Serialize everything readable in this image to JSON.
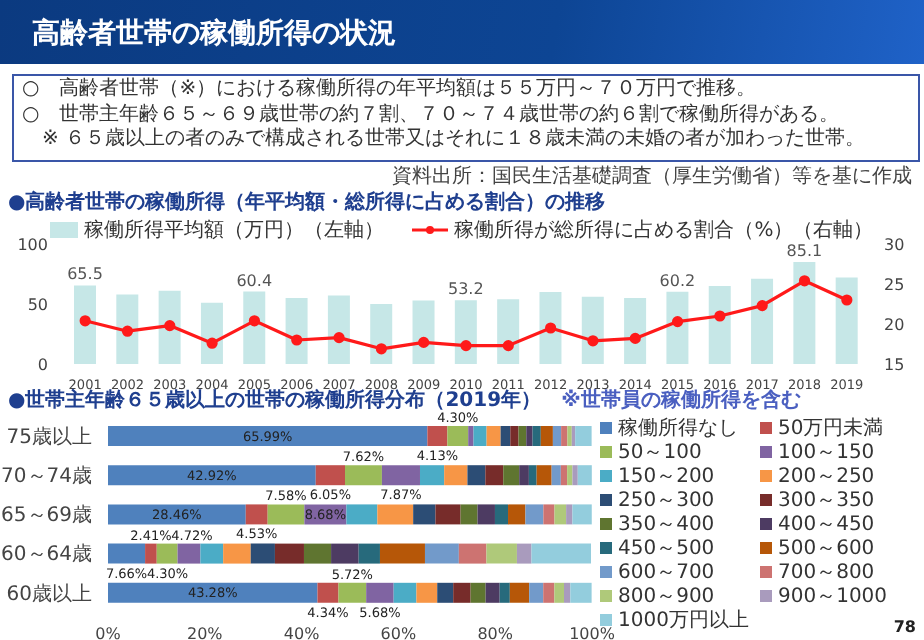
{
  "chart_data": [
    {
      "type": "bar",
      "title": "●高齢者世帯の稼働所得（年平均額・総所得に占める割合）の推移",
      "annotations": [
        "高齢者世帯の稼働所得の状況",
        "○　高齢者世帯（※）における稼働所得の年平均額は５５万円～７０万円で推移。",
        "○　世帯主年齢６５～６９歳世帯の約７割、７０～７４歳世帯の約６割で稼働所得がある。",
        "※ ６５歳以上の者のみで構成される世帯又はそれに１８歳未満の未婚の者が加わった世帯。",
        "資料出所：国民生活基礎調査（厚生労働省）等を基に作成"
      ],
      "categories": [
        "2001",
        "2002",
        "2003",
        "2004",
        "2005",
        "2006",
        "2007",
        "2008",
        "2009",
        "2010",
        "2011",
        "2012",
        "2013",
        "2014",
        "2015",
        "2016",
        "2017",
        "2018",
        "2019"
      ],
      "series": [
        {
          "name": "稼働所得平均額（万円）（左軸）",
          "type": "bar",
          "color": "#c6e7e7",
          "values": [
            65.5,
            58,
            61,
            51,
            60.4,
            55,
            57,
            50,
            53,
            53.2,
            54,
            60,
            56,
            55,
            60.2,
            65,
            71,
            85.1,
            72
          ],
          "value_labels": [
            "65.5",
            null,
            null,
            null,
            "60.4",
            null,
            null,
            null,
            null,
            "53.2",
            null,
            null,
            null,
            null,
            "60.2",
            null,
            null,
            "85.1",
            null
          ]
        },
        {
          "name": "稼働所得が総所得に占める割合（%）（右軸）",
          "type": "line",
          "axis": "y2",
          "color": "#ff1a1a",
          "values": [
            20.4,
            19.1,
            19.8,
            17.6,
            20.4,
            18.0,
            18.3,
            16.9,
            17.7,
            17.3,
            17.3,
            19.5,
            17.9,
            18.2,
            20.3,
            21.0,
            22.3,
            25.4,
            23.0
          ]
        }
      ],
      "ylim": [
        0,
        100
      ],
      "yticks": [
        0,
        50,
        100
      ],
      "y2lim": [
        15,
        30
      ],
      "y2ticks": [
        15,
        20,
        25,
        30
      ],
      "legend": "top",
      "marker": "circle"
    },
    {
      "type": "bar",
      "orientation": "horizontal",
      "stacked": true,
      "title": "●世帯主年齢６５歳以上の世帯の稼働所得分布（2019年）",
      "annotations": [
        "※世帯員の稼働所得を含む",
        "78"
      ],
      "categories": [
        "75歳以上",
        "70～74歳",
        "65～69歳",
        "60～64歳",
        "60歳以上"
      ],
      "series": [
        {
          "name": "稼働所得なし",
          "color": "#4f81bd",
          "values": [
            65.99,
            42.92,
            28.46,
            7.66,
            43.28
          ],
          "value_labels": [
            "65.99%",
            "42.92%",
            "28.46%",
            "7.66%",
            "43.28%"
          ]
        },
        {
          "name": "50万円未満",
          "color": "#c0504d",
          "values": [
            4.13,
            6.05,
            4.53,
            2.41,
            4.34
          ],
          "value_labels": [
            "4.13%",
            "6.05%",
            "4.53%",
            "2.41%",
            "4.34%"
          ]
        },
        {
          "name": "50～100",
          "color": "#9bbb59",
          "values": [
            4.3,
            7.62,
            7.58,
            4.3,
            5.72
          ],
          "value_labels": [
            "4.30%",
            "7.62%",
            "7.58%",
            "4.30%",
            "5.72%"
          ]
        },
        {
          "name": "100～150",
          "color": "#8064a2",
          "values": [
            1.1,
            7.87,
            8.68,
            4.72,
            5.68
          ],
          "value_labels": [
            null,
            "7.87%",
            "8.68%",
            "4.72%",
            "5.68%"
          ]
        },
        {
          "name": "150～200",
          "color": "#4bacc6",
          "values": [
            2.7,
            5.0,
            6.4,
            4.7,
            4.7
          ]
        },
        {
          "name": "200～250",
          "color": "#f79646",
          "values": [
            2.9,
            4.8,
            7.4,
            5.7,
            4.3
          ]
        },
        {
          "name": "250～300",
          "color": "#2c4d75",
          "values": [
            2.0,
            3.7,
            4.6,
            5.0,
            3.3
          ]
        },
        {
          "name": "300～350",
          "color": "#772c2a",
          "values": [
            1.7,
            3.7,
            5.2,
            6.0,
            3.6
          ]
        },
        {
          "name": "350～400",
          "color": "#5f7530",
          "values": [
            1.6,
            3.3,
            3.5,
            5.6,
            3.1
          ]
        },
        {
          "name": "400～450",
          "color": "#4d3b62",
          "values": [
            1.3,
            2.0,
            3.6,
            5.7,
            2.9
          ]
        },
        {
          "name": "450～500",
          "color": "#276a7c",
          "values": [
            1.7,
            1.6,
            2.7,
            4.4,
            2.1
          ]
        },
        {
          "name": "500～600",
          "color": "#b65708",
          "values": [
            2.5,
            3.1,
            3.6,
            9.3,
            4.0
          ]
        },
        {
          "name": "600～700",
          "color": "#729aca",
          "values": [
            1.7,
            1.9,
            3.7,
            7.0,
            2.9
          ]
        },
        {
          "name": "700～800",
          "color": "#cd7371",
          "values": [
            1.3,
            1.3,
            2.3,
            5.7,
            2.3
          ]
        },
        {
          "name": "800～900",
          "color": "#afc97a",
          "values": [
            0.9,
            1.1,
            2.4,
            6.3,
            2.0
          ]
        },
        {
          "name": "900～1000",
          "color": "#a99bbd",
          "values": [
            0.7,
            1.1,
            1.3,
            3.0,
            1.3
          ]
        },
        {
          "name": "1000万円以上",
          "color": "#93cddd",
          "values": [
            3.4,
            2.9,
            4.0,
            12.3,
            4.4
          ]
        }
      ],
      "xlim": [
        0,
        100
      ],
      "xticks": [
        {
          "value": 0,
          "label": "0%"
        },
        {
          "value": 20,
          "label": "20%"
        },
        {
          "value": 40,
          "label": "40%"
        },
        {
          "value": 60,
          "label": "60%"
        },
        {
          "value": 80,
          "label": "80%"
        },
        {
          "value": 100,
          "label": "100%"
        }
      ],
      "legend": "right"
    }
  ]
}
